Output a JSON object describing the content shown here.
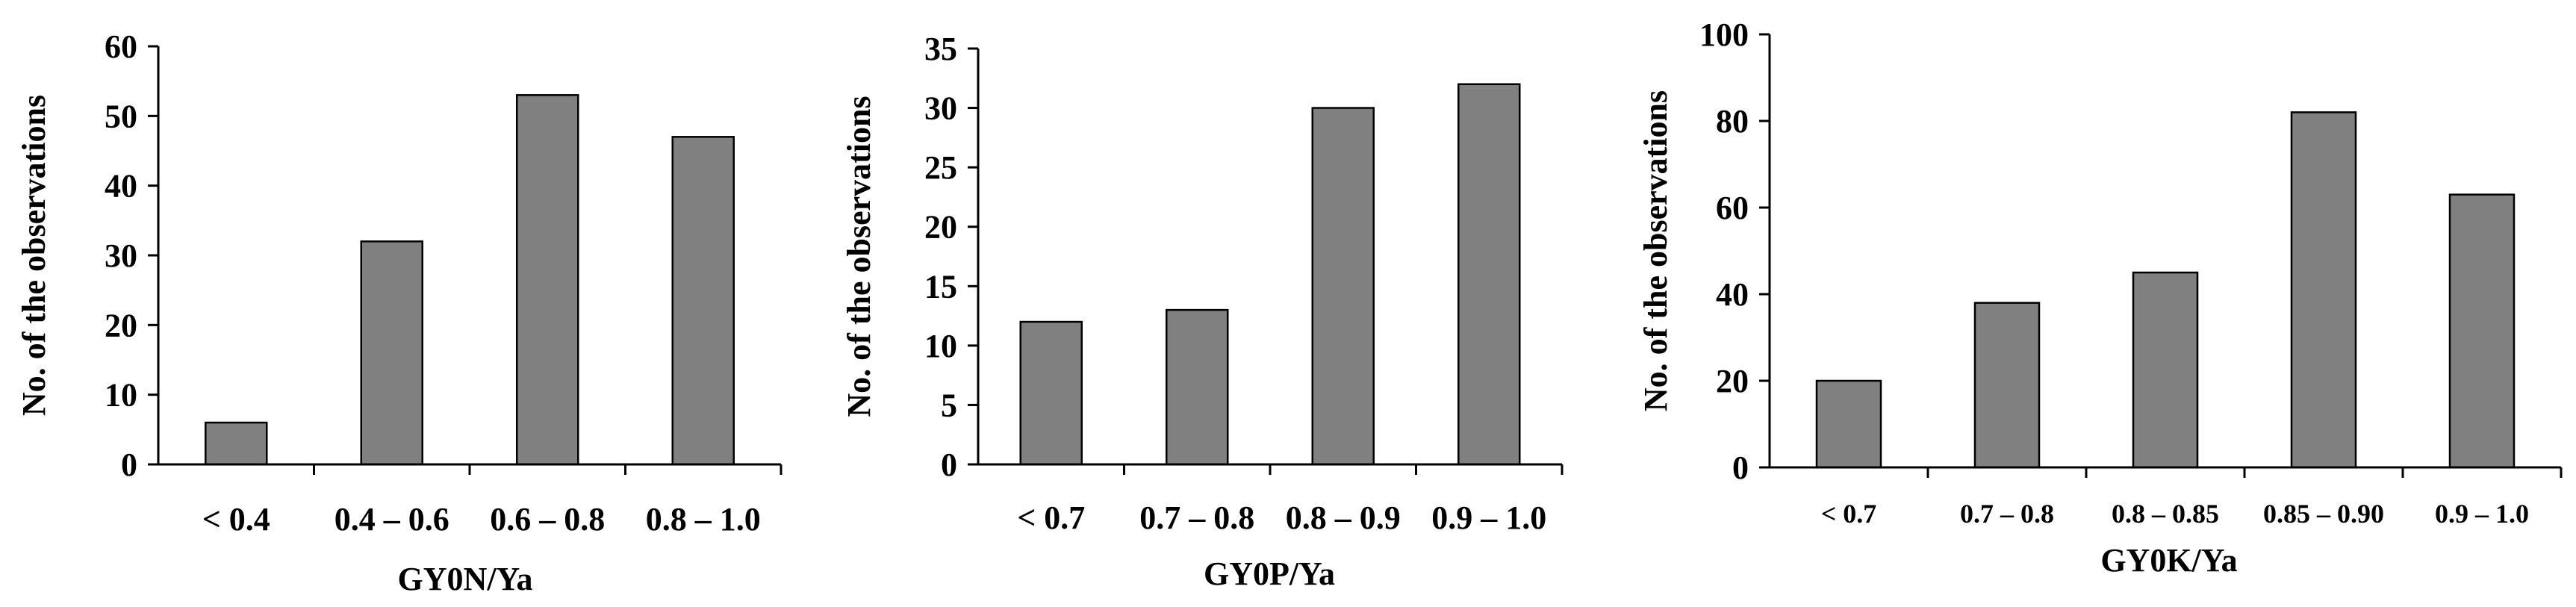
{
  "chart_data": [
    {
      "type": "bar",
      "categories": [
        "< 0.4",
        "0.4 – 0.6",
        "0.6 – 0.8",
        "0.8 – 1.0"
      ],
      "values": [
        6,
        32,
        53,
        47
      ],
      "xlabel": "GY0N/Ya",
      "ylabel": "No. of the observations",
      "ylim": [
        0,
        60
      ],
      "yticks": [
        "0",
        "10",
        "20",
        "30",
        "40",
        "50",
        "60"
      ],
      "bar_color": "#808080",
      "grid": false
    },
    {
      "type": "bar",
      "categories": [
        "< 0.7",
        "0.7 – 0.8",
        "0.8 – 0.9",
        "0.9 – 1.0"
      ],
      "values": [
        12,
        13,
        30,
        32
      ],
      "xlabel": "GY0P/Ya",
      "ylabel": "No. of the observations",
      "ylim": [
        0,
        35
      ],
      "yticks": [
        "0",
        "5",
        "10",
        "15",
        "20",
        "25",
        "30",
        "35"
      ],
      "bar_color": "#808080",
      "grid": false
    },
    {
      "type": "bar",
      "categories": [
        "< 0.7",
        "0.7 – 0.8",
        "0.8 – 0.85",
        "0.85 – 0.90",
        "0.9 – 1.0"
      ],
      "values": [
        20,
        38,
        45,
        82,
        63
      ],
      "xlabel": "GY0K/Ya",
      "ylabel": "No. of the observations",
      "ylim": [
        0,
        100
      ],
      "yticks": [
        "0",
        "20",
        "40",
        "60",
        "80",
        "100"
      ],
      "bar_color": "#808080",
      "grid": false
    }
  ]
}
